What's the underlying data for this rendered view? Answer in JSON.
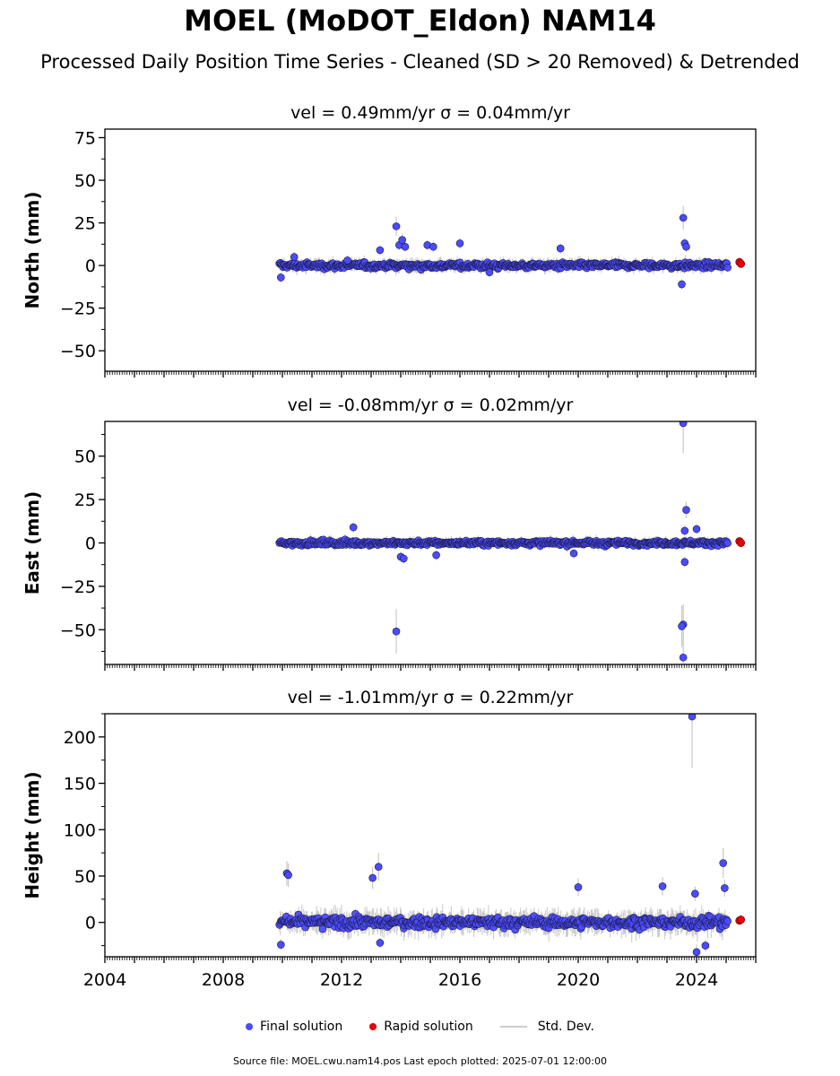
{
  "title": "MOEL (MoDOT_Eldon) NAM14",
  "subtitle": "Processed Daily Position Time Series - Cleaned (SD > 20 Removed) & Detrended",
  "legend": {
    "final": "Final solution",
    "rapid": "Rapid solution",
    "std": "Std. Dev."
  },
  "footer": "Source file: MOEL.cwu.nam14.pos  Last epoch plotted: 2025-07-01 12:00:00",
  "colors": {
    "final": "#4b4bff",
    "rapid": "#e8000b",
    "std": "#c8c8c8",
    "edge": "#1a1a40"
  },
  "chart_data": [
    {
      "type": "scatter",
      "title": "vel = 0.49mm/yr   σ = 0.04mm/yr",
      "ylabel": "North (mm)",
      "xlim": [
        2004,
        2026
      ],
      "ylim": [
        -62,
        80
      ],
      "yticks": [
        -50,
        -25,
        0,
        25,
        50,
        75
      ],
      "xticks": [
        2004,
        2008,
        2012,
        2016,
        2020,
        2024
      ],
      "show_xticklabels": false,
      "series": [
        {
          "name": "Final solution",
          "x_start": 2009.9,
          "x_end": 2025.05,
          "typical_amplitude": 2.2,
          "outliers": [
            [
              2009.95,
              -7
            ],
            [
              2010.4,
              5
            ],
            [
              2012.2,
              3
            ],
            [
              2013.3,
              9
            ],
            [
              2013.85,
              23
            ],
            [
              2013.95,
              12
            ],
            [
              2014.05,
              15
            ],
            [
              2014.15,
              11
            ],
            [
              2014.9,
              12
            ],
            [
              2015.1,
              11
            ],
            [
              2016.0,
              13
            ],
            [
              2017.0,
              -4
            ],
            [
              2019.4,
              10
            ],
            [
              2023.55,
              28
            ],
            [
              2023.6,
              13
            ],
            [
              2023.5,
              -11
            ],
            [
              2023.65,
              11
            ]
          ]
        },
        {
          "name": "Rapid solution",
          "points": [
            [
              2025.45,
              2
            ],
            [
              2025.5,
              1
            ]
          ]
        }
      ]
    },
    {
      "type": "scatter",
      "title": "vel = -0.08mm/yr   σ = 0.02mm/yr",
      "ylabel": "East (mm)",
      "xlim": [
        2004,
        2026
      ],
      "ylim": [
        -70,
        70
      ],
      "yticks": [
        -50,
        -25,
        0,
        25,
        50
      ],
      "xticks": [
        2004,
        2008,
        2012,
        2016,
        2020,
        2024
      ],
      "show_xticklabels": false,
      "series": [
        {
          "name": "Final solution",
          "x_start": 2009.9,
          "x_end": 2025.05,
          "typical_amplitude": 1.8,
          "outliers": [
            [
              2012.4,
              9
            ],
            [
              2013.85,
              -51
            ],
            [
              2014.0,
              -8
            ],
            [
              2014.1,
              -9
            ],
            [
              2015.2,
              -7
            ],
            [
              2019.85,
              -6
            ],
            [
              2023.55,
              69
            ],
            [
              2023.65,
              19
            ],
            [
              2023.55,
              -47
            ],
            [
              2023.5,
              -48
            ],
            [
              2023.55,
              -66
            ],
            [
              2023.6,
              -11
            ],
            [
              2023.6,
              7
            ],
            [
              2024.0,
              8
            ]
          ]
        },
        {
          "name": "Rapid solution",
          "points": [
            [
              2025.45,
              1
            ],
            [
              2025.5,
              0
            ]
          ]
        }
      ]
    },
    {
      "type": "scatter",
      "title": "vel = -1.01mm/yr   σ = 0.22mm/yr",
      "ylabel": "Height (mm)",
      "xlim": [
        2004,
        2026
      ],
      "ylim": [
        -37,
        225
      ],
      "yticks": [
        0,
        50,
        100,
        150,
        200
      ],
      "xticks": [
        2004,
        2008,
        2012,
        2016,
        2020,
        2024
      ],
      "show_xticklabels": true,
      "series": [
        {
          "name": "Final solution",
          "x_start": 2009.9,
          "x_end": 2025.05,
          "typical_amplitude": 7.5,
          "outliers": [
            [
              2010.15,
              53
            ],
            [
              2010.2,
              51
            ],
            [
              2013.05,
              48
            ],
            [
              2013.25,
              60
            ],
            [
              2020.0,
              38
            ],
            [
              2022.85,
              39
            ],
            [
              2023.85,
              222
            ],
            [
              2023.95,
              31
            ],
            [
              2024.9,
              64
            ],
            [
              2024.95,
              37
            ],
            [
              2024.0,
              -32
            ],
            [
              2024.3,
              -25
            ],
            [
              2009.95,
              -24
            ],
            [
              2013.3,
              -22
            ]
          ]
        },
        {
          "name": "Rapid solution",
          "points": [
            [
              2025.45,
              2
            ],
            [
              2025.5,
              3
            ]
          ]
        }
      ]
    }
  ]
}
